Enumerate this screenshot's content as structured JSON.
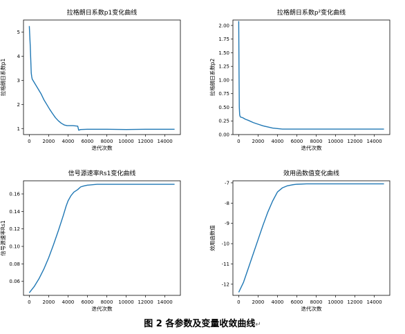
{
  "caption": {
    "text": "图 2  各参数及变量收敛曲线",
    "mark": "↵"
  },
  "chart_data": [
    {
      "type": "line",
      "title": "拉格朗日系数p1变化曲线",
      "xlabel": "迭代次数",
      "ylabel": "拉格朗日系数p1",
      "xlim": [
        -600,
        15600
      ],
      "ylim": [
        0.75,
        5.5
      ],
      "xticks": [
        0,
        2000,
        4000,
        6000,
        8000,
        10000,
        12000,
        14000
      ],
      "yticks": [
        1,
        2,
        3,
        4,
        5
      ],
      "ytick_labels": [
        "1",
        "2",
        "3",
        "4",
        "5"
      ],
      "grid": false,
      "series": [
        {
          "color": "#1f77b4",
          "x": [
            0,
            100,
            200,
            250,
            300,
            600,
            900,
            1200,
            1500,
            1800,
            2100,
            2400,
            2700,
            3000,
            3300,
            3600,
            3900,
            4000,
            4500,
            5000,
            5100,
            5300,
            6000,
            8000,
            10000,
            12000,
            14000,
            15000
          ],
          "y": [
            5.25,
            4.4,
            3.3,
            3.15,
            3.05,
            2.85,
            2.65,
            2.45,
            2.2,
            2.0,
            1.8,
            1.62,
            1.45,
            1.32,
            1.22,
            1.15,
            1.12,
            1.12,
            1.12,
            1.1,
            0.93,
            0.96,
            0.97,
            0.97,
            0.96,
            0.97,
            0.97,
            0.97
          ]
        }
      ]
    },
    {
      "type": "line",
      "title": "拉格朗日系数p²变化曲线",
      "xlabel": "迭代次数",
      "ylabel": "拉格朗日系数p2",
      "xlim": [
        -600,
        15600
      ],
      "ylim": [
        0.0,
        2.1
      ],
      "xticks": [
        0,
        2000,
        4000,
        6000,
        8000,
        10000,
        12000,
        14000
      ],
      "yticks": [
        0.0,
        0.25,
        0.5,
        0.75,
        1.0,
        1.25,
        1.5,
        1.75,
        2.0
      ],
      "ytick_labels": [
        "0.00",
        "0.25",
        "0.50",
        "0.75",
        "1.00",
        "1.25",
        "1.50",
        "1.75",
        "2.00"
      ],
      "grid": false,
      "series": [
        {
          "color": "#1f77b4",
          "x": [
            0,
            30,
            60,
            100,
            150,
            200,
            400,
            700,
            1000,
            1500,
            2000,
            2500,
            3000,
            3500,
            4000,
            4500,
            5000,
            6000,
            8000,
            10000,
            12000,
            14000,
            15000
          ],
          "y": [
            2.08,
            1.2,
            0.5,
            0.36,
            0.33,
            0.32,
            0.31,
            0.28,
            0.26,
            0.22,
            0.19,
            0.16,
            0.14,
            0.12,
            0.11,
            0.1,
            0.1,
            0.1,
            0.1,
            0.1,
            0.1,
            0.1,
            0.1
          ]
        }
      ]
    },
    {
      "type": "line",
      "title": "信号源速率Rs1变化曲线",
      "xlabel": "迭代次数",
      "ylabel": "信号源速率Rs1",
      "xlim": [
        -600,
        15600
      ],
      "ylim": [
        0.044,
        0.175
      ],
      "xticks": [
        0,
        2000,
        4000,
        6000,
        8000,
        10000,
        12000,
        14000
      ],
      "yticks": [
        0.06,
        0.08,
        0.1,
        0.12,
        0.14,
        0.16
      ],
      "ytick_labels": [
        "0.06",
        "0.08",
        "0.10",
        "0.12",
        "0.14",
        "0.16"
      ],
      "grid": false,
      "series": [
        {
          "color": "#1f77b4",
          "x": [
            0,
            500,
            1000,
            1500,
            2000,
            2500,
            3000,
            3500,
            3800,
            4000,
            4300,
            4600,
            5000,
            5300,
            5600,
            6000,
            7000,
            8000,
            10000,
            12000,
            14000,
            15000
          ],
          "y": [
            0.047,
            0.054,
            0.063,
            0.074,
            0.087,
            0.102,
            0.118,
            0.135,
            0.146,
            0.152,
            0.158,
            0.162,
            0.165,
            0.168,
            0.169,
            0.17,
            0.171,
            0.171,
            0.171,
            0.171,
            0.171,
            0.171
          ]
        }
      ]
    },
    {
      "type": "line",
      "title": "效用函数值变化曲线",
      "xlabel": "迭代次数",
      "ylabel": "效用函数值",
      "xlim": [
        -600,
        15600
      ],
      "ylim": [
        -12.55,
        -6.9
      ],
      "xticks": [
        0,
        2000,
        4000,
        6000,
        8000,
        10000,
        12000,
        14000
      ],
      "yticks": [
        -12,
        -11,
        -10,
        -9,
        -8,
        -7
      ],
      "ytick_labels": [
        "-12",
        "-11",
        "-10",
        "-9",
        "-8",
        "-7"
      ],
      "grid": false,
      "series": [
        {
          "color": "#1f77b4",
          "x": [
            0,
            500,
            1000,
            1500,
            2000,
            2500,
            3000,
            3500,
            4000,
            4500,
            5000,
            5500,
            6000,
            7000,
            8000,
            10000,
            12000,
            14000,
            15000
          ],
          "y": [
            -12.4,
            -11.9,
            -11.2,
            -10.5,
            -9.8,
            -9.1,
            -8.45,
            -7.9,
            -7.45,
            -7.25,
            -7.15,
            -7.1,
            -7.07,
            -7.05,
            -7.05,
            -7.05,
            -7.05,
            -7.05,
            -7.05
          ]
        }
      ]
    }
  ]
}
